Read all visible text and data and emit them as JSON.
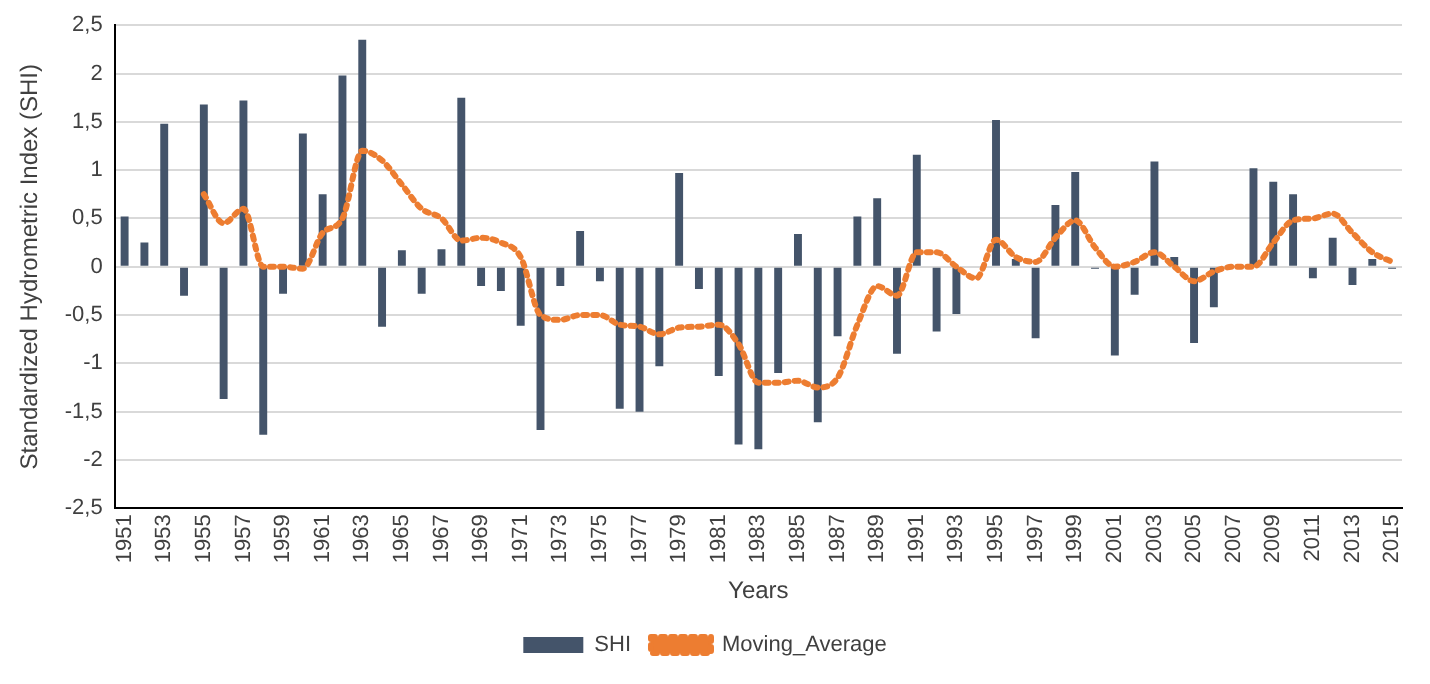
{
  "chart_data": {
    "type": "bar",
    "xlabel": "Years",
    "ylabel": "Standardized Hydrometric Index (SHI)",
    "categories": [
      "1951",
      null,
      "1953",
      null,
      "1955",
      null,
      "1957",
      null,
      "1959",
      null,
      "1961",
      null,
      "1963",
      null,
      "1965",
      null,
      "1967",
      null,
      "1969",
      null,
      "1971",
      null,
      "1973",
      null,
      "1975",
      null,
      "1977",
      null,
      "1979",
      null,
      "1981",
      null,
      "1983",
      null,
      "1985",
      null,
      "1987",
      null,
      "1989",
      null,
      "1991",
      null,
      "1993",
      null,
      "1995",
      null,
      "1997",
      null,
      "1999",
      null,
      "2001",
      null,
      "2003",
      null,
      "2005",
      null,
      "2007",
      null,
      "2009",
      null,
      "2011",
      null,
      "2013",
      null,
      "2015"
    ],
    "series": [
      {
        "name": "SHI",
        "color": "#44546a",
        "values": [
          0.52,
          0.25,
          1.48,
          -0.3,
          1.68,
          -1.37,
          1.72,
          -1.74,
          -0.28,
          1.38,
          0.75,
          1.98,
          2.35,
          -0.62,
          0.17,
          -0.28,
          0.18,
          1.75,
          -0.2,
          -0.25,
          -0.61,
          -1.69,
          -0.2,
          0.37,
          -0.15,
          -1.47,
          -1.5,
          -1.03,
          0.97,
          -0.23,
          -1.13,
          -1.84,
          -1.89,
          -1.1,
          0.34,
          -1.61,
          -0.72,
          0.52,
          0.71,
          -0.9,
          1.16,
          -0.67,
          -0.49,
          0,
          1.52,
          0.08,
          -0.74,
          0.64,
          0.98,
          -0.02,
          -0.92,
          -0.29,
          1.09,
          0.1,
          -0.79,
          -0.42,
          0,
          1.02,
          0.88,
          0.75,
          -0.12,
          0.3,
          -0.19,
          0.08,
          -0.02
        ]
      },
      {
        "name": "Moving_Average",
        "type": "line",
        "color": "#ed7d31",
        "line_style": "dotted",
        "values": [
          null,
          null,
          null,
          null,
          0.75,
          0.45,
          0.6,
          0.0,
          0.0,
          -0.02,
          0.35,
          0.5,
          1.2,
          1.1,
          0.85,
          0.6,
          0.5,
          0.27,
          0.3,
          0.25,
          0.1,
          -0.5,
          -0.55,
          -0.5,
          -0.5,
          -0.6,
          -0.62,
          -0.7,
          -0.63,
          -0.62,
          -0.6,
          -0.8,
          -1.2,
          -1.2,
          -1.18,
          -1.25,
          -1.15,
          -0.6,
          -0.2,
          -0.3,
          0.15,
          0.15,
          0.0,
          -0.12,
          0.28,
          0.1,
          0.05,
          0.3,
          0.48,
          0.2,
          0.0,
          0.05,
          0.15,
          0.0,
          -0.15,
          -0.05,
          0.0,
          0.0,
          0.25,
          0.48,
          0.5,
          0.55,
          0.35,
          0.15,
          0.05
        ]
      }
    ],
    "ylim": [
      -2.5,
      2.5
    ],
    "yticks": [
      {
        "value": -2.5,
        "label": "-2,5"
      },
      {
        "value": -2,
        "label": "-2"
      },
      {
        "value": -1.5,
        "label": "-1,5"
      },
      {
        "value": -1,
        "label": "-1"
      },
      {
        "value": -0.5,
        "label": "-0,5"
      },
      {
        "value": 0,
        "label": "0"
      },
      {
        "value": 0.5,
        "label": "0,5"
      },
      {
        "value": 1,
        "label": "1"
      },
      {
        "value": 1.5,
        "label": "1,5"
      },
      {
        "value": 2,
        "label": "2"
      },
      {
        "value": 2.5,
        "label": "2,5"
      }
    ],
    "grid": "y",
    "legend": "bottom"
  }
}
